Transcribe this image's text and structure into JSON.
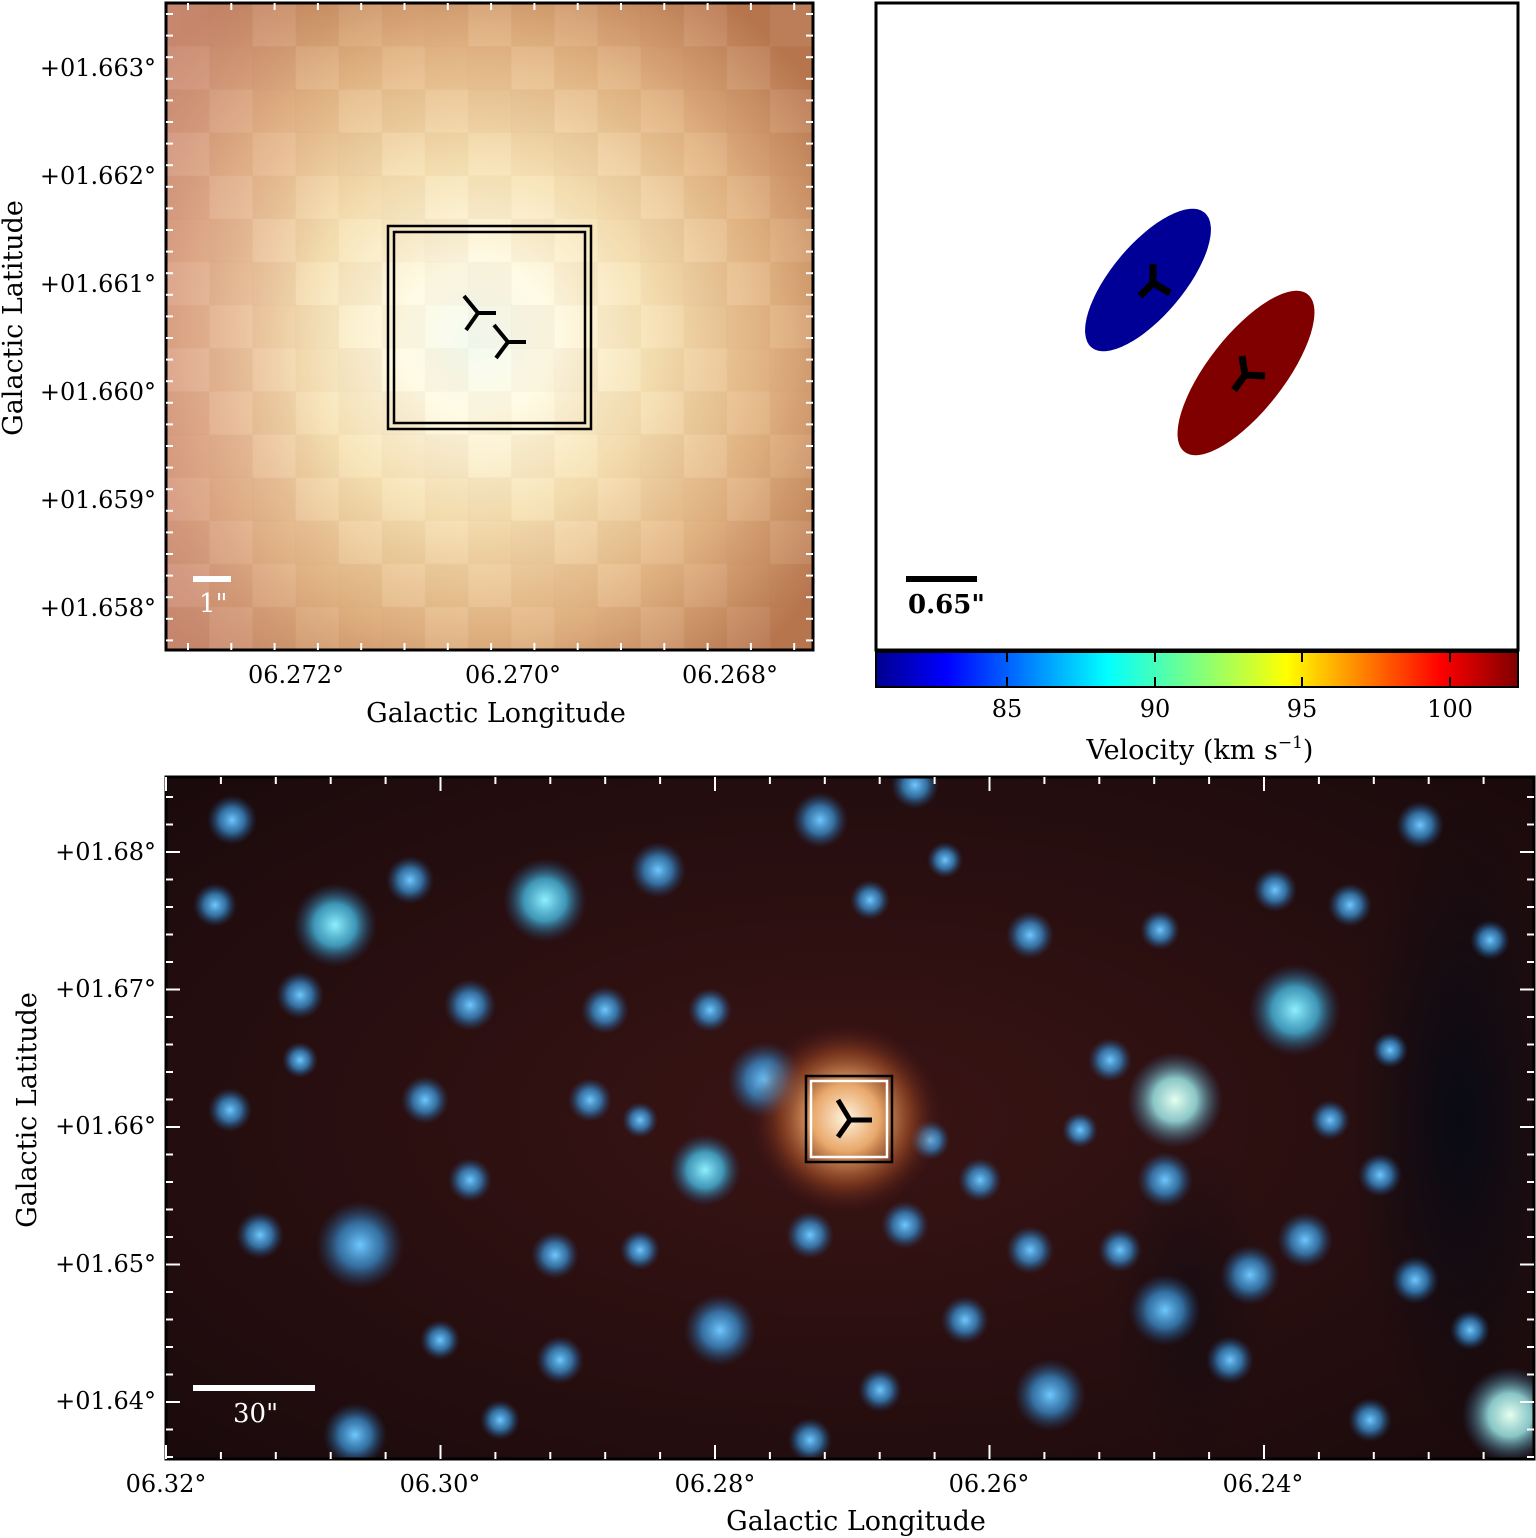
{
  "top_left_panel": {
    "xlabel": "Galactic Longitude",
    "ylabel": "Galactic Latitude",
    "x_ticks": [
      "06.272°",
      "06.270°",
      "06.268°"
    ],
    "y_ticks": [
      "+01.663°",
      "+01.662°",
      "+01.661°",
      "+01.660°",
      "+01.659°",
      "+01.658°"
    ],
    "scale_bar": "1\""
  },
  "top_right_panel": {
    "scale_bar": "0.65\"",
    "colorbar": {
      "ticks": [
        "85",
        "90",
        "95",
        "100"
      ],
      "label_main": "Velocity (km s",
      "label_sup": "−1",
      "label_end": ")"
    },
    "colors": {
      "blue_ellipse": "#000096",
      "red_ellipse": "#800000"
    }
  },
  "bottom_panel": {
    "xlabel": "Galactic Longitude",
    "ylabel": "Galactic Latitude",
    "x_ticks": [
      "06.32°",
      "06.30°",
      "06.28°",
      "06.26°",
      "06.24°"
    ],
    "y_ticks": [
      "+01.68°",
      "+01.67°",
      "+01.66°",
      "+01.65°",
      "+01.64°"
    ],
    "scale_bar": "30\""
  }
}
